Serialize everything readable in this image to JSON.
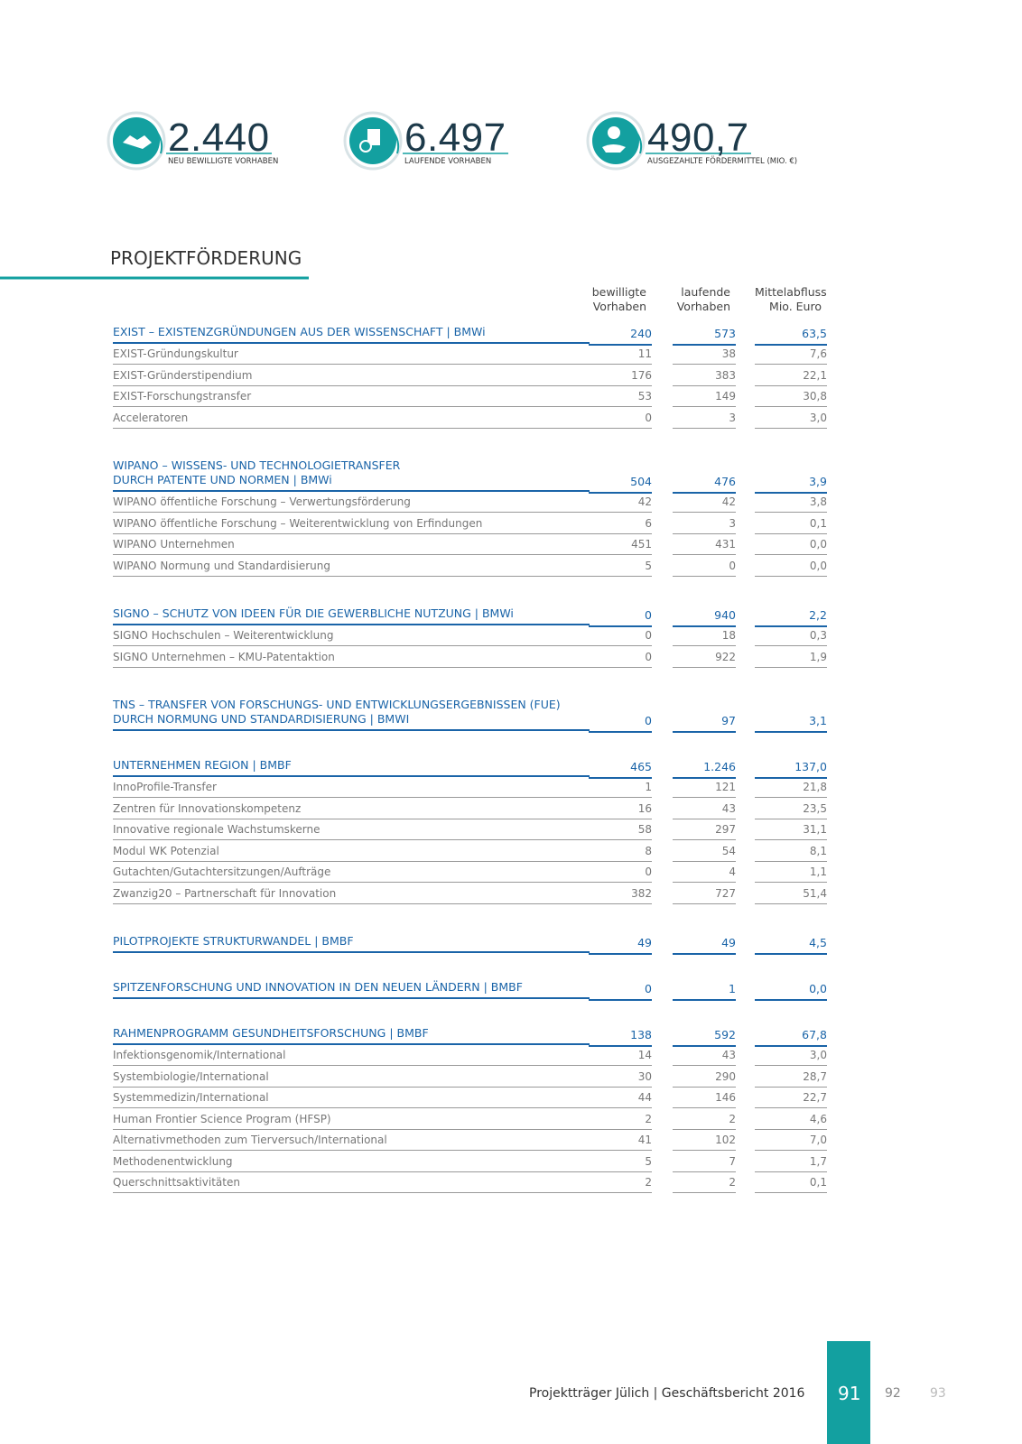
{
  "stats": [
    {
      "value": "2.440",
      "label": "NEU BEWILLIGTE VORHABEN"
    },
    {
      "value": "6.497",
      "label": "LAUFENDE VORHABEN"
    },
    {
      "value": "490,7",
      "label": "AUSGEZAHLTE FÖRDERMITTEL (MIO. €)"
    }
  ],
  "section_title": "PROJEKTFÖRDERUNG",
  "table": {
    "headers": [
      [
        "bewilligte",
        "Vorhaben"
      ],
      [
        "laufende",
        "Vorhaben"
      ],
      [
        "Mittelabfluss",
        "Mio. Euro"
      ]
    ],
    "groups": [
      {
        "title": [
          "EXIST – EXISTENZGRÜNDUNGEN AUS DER WISSENSCHAFT | BMWi"
        ],
        "values": [
          "240",
          "573",
          "63,5"
        ],
        "rows": [
          {
            "label": "EXIST-Gründungskultur",
            "values": [
              "11",
              "38",
              "7,6"
            ]
          },
          {
            "label": "EXIST-Gründerstipendium",
            "values": [
              "176",
              "383",
              "22,1"
            ]
          },
          {
            "label": "EXIST-Forschungstransfer",
            "values": [
              "53",
              "149",
              "30,8"
            ]
          },
          {
            "label": "Acceleratoren",
            "values": [
              "0",
              "3",
              "3,0"
            ]
          }
        ]
      },
      {
        "title": [
          "WIPANO – WISSENS- UND TECHNOLOGIETRANSFER",
          "DURCH PATENTE UND NORMEN | BMWi"
        ],
        "values": [
          "504",
          "476",
          "3,9"
        ],
        "rows": [
          {
            "label": "WIPANO öffentliche Forschung – Verwertungsförderung",
            "values": [
              "42",
              "42",
              "3,8"
            ]
          },
          {
            "label": "WIPANO öffentliche Forschung – Weiterentwicklung von Erfindungen",
            "values": [
              "6",
              "3",
              "0,1"
            ]
          },
          {
            "label": "WIPANO Unternehmen",
            "values": [
              "451",
              "431",
              "0,0"
            ]
          },
          {
            "label": "WIPANO Normung und Standardisierung",
            "values": [
              "5",
              "0",
              "0,0"
            ]
          }
        ]
      },
      {
        "title": [
          "SIGNO – SCHUTZ VON IDEEN FÜR DIE GEWERBLICHE NUTZUNG | BMWi"
        ],
        "values": [
          "0",
          "940",
          "2,2"
        ],
        "rows": [
          {
            "label": "SIGNO Hochschulen – Weiterentwicklung",
            "values": [
              "0",
              "18",
              "0,3"
            ]
          },
          {
            "label": "SIGNO Unternehmen – KMU-Patentaktion",
            "values": [
              "0",
              "922",
              "1,9"
            ]
          }
        ]
      },
      {
        "title": [
          "TNS – TRANSFER VON FORSCHUNGS- UND ENTWICKLUNGSERGEBNISSEN (FUE)",
          "DURCH NORMUNG UND STANDARDISIERUNG | BMWI"
        ],
        "values": [
          "0",
          "97",
          "3,1"
        ],
        "rows": []
      },
      {
        "title": [
          "UNTERNEHMEN REGION | BMBF"
        ],
        "values": [
          "465",
          "1.246",
          "137,0"
        ],
        "rows": [
          {
            "label": "InnoProfile-Transfer",
            "values": [
              "1",
              "121",
              "21,8"
            ]
          },
          {
            "label": "Zentren für Innovationskompetenz",
            "values": [
              "16",
              "43",
              "23,5"
            ]
          },
          {
            "label": "Innovative regionale Wachstumskerne",
            "values": [
              "58",
              "297",
              "31,1"
            ]
          },
          {
            "label": "Modul WK Potenzial",
            "values": [
              "8",
              "54",
              "8,1"
            ]
          },
          {
            "label": "Gutachten/Gutachtersitzungen/Aufträge",
            "values": [
              "0",
              "4",
              "1,1"
            ]
          },
          {
            "label": "Zwanzig20 – Partnerschaft für Innovation",
            "values": [
              "382",
              "727",
              "51,4"
            ]
          }
        ]
      },
      {
        "title": [
          "PILOTPROJEKTE STRUKTURWANDEL | BMBF"
        ],
        "values": [
          "49",
          "49",
          "4,5"
        ],
        "rows": []
      },
      {
        "title": [
          "SPITZENFORSCHUNG UND INNOVATION IN DEN NEUEN LÄNDERN | BMBF"
        ],
        "values": [
          "0",
          "1",
          "0,0"
        ],
        "rows": []
      },
      {
        "title": [
          "RAHMENPROGRAMM GESUNDHEITSFORSCHUNG | BMBF"
        ],
        "values": [
          "138",
          "592",
          "67,8"
        ],
        "rows": [
          {
            "label": "Infektionsgenomik/International",
            "values": [
              "14",
              "43",
              "3,0"
            ]
          },
          {
            "label": "Systembiologie/International",
            "values": [
              "30",
              "290",
              "28,7"
            ]
          },
          {
            "label": "Systemmedizin/International",
            "values": [
              "44",
              "146",
              "22,7"
            ]
          },
          {
            "label": "Human Frontier Science Program (HFSP)",
            "values": [
              "2",
              "2",
              "4,6"
            ]
          },
          {
            "label": "Alternativmethoden zum Tierversuch/International",
            "values": [
              "41",
              "102",
              "7,0"
            ]
          },
          {
            "label": "Methodenentwicklung",
            "values": [
              "5",
              "7",
              "1,7"
            ]
          },
          {
            "label": "Querschnittsaktivitäten",
            "values": [
              "2",
              "2",
              "0,1"
            ]
          }
        ]
      }
    ]
  },
  "footer": {
    "text": "Projektträger Jülich | Geschäftsbericht 2016",
    "pages": [
      "91",
      "92",
      "93"
    ]
  }
}
